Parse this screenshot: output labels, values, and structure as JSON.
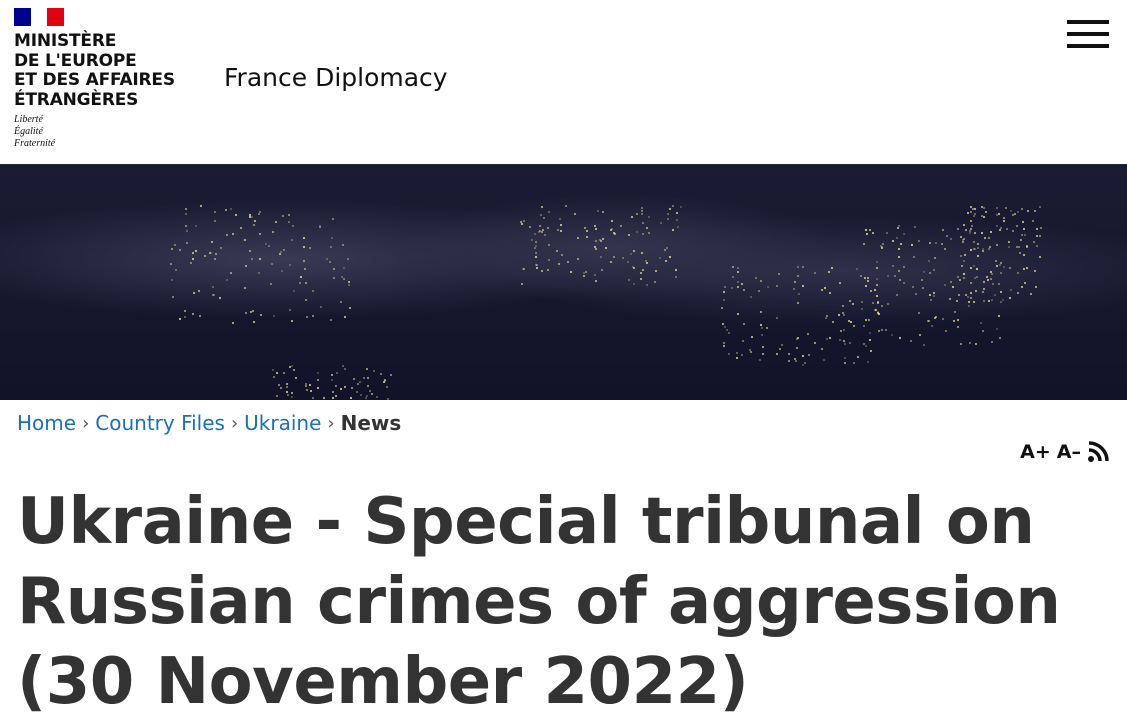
{
  "header": {
    "ministry_lines": [
      "MINISTÈRE",
      "DE L'EUROPE",
      "ET DES AFFAIRES",
      "ÉTRANGÈRES"
    ],
    "motto": [
      "Liberté",
      "Égalité",
      "Fraternité"
    ],
    "site_name": "France Diplomacy",
    "menu_icon": "hamburger-icon"
  },
  "breadcrumb": {
    "items": [
      "Home",
      "Country Files",
      "Ukraine"
    ],
    "current": "News",
    "separator": "›"
  },
  "tools": {
    "increase": "A+",
    "decrease": "A–",
    "rss_icon": "rss-icon"
  },
  "article": {
    "title": "Ukraine - Special tribunal on Russian crimes of aggression (30 November 2022)"
  },
  "colors": {
    "link": "#1a6fc0",
    "flag_blue": "#000091",
    "flag_red": "#e1000f"
  }
}
